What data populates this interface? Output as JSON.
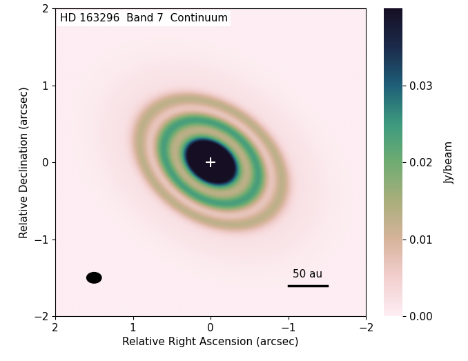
{
  "chart_data": {
    "type": "image",
    "title": "HD 163296  Band 7  Continuum",
    "x_label": "Relative Right Ascension (arcsec)",
    "y_label": "Relative Declination (arcsec)",
    "xlim": [
      2,
      -2
    ],
    "ylim": [
      -2,
      2
    ],
    "xticks": [
      2,
      1,
      0,
      {
        "value": -1,
        "label": "−1"
      },
      {
        "value": -2,
        "label": "−2"
      }
    ],
    "yticks": [
      {
        "value": -2,
        "label": "−2"
      },
      {
        "value": -1,
        "label": "−1"
      },
      0,
      1,
      2
    ],
    "colorbar_label": "Jy/beam",
    "colorbar_range": [
      0,
      0.04
    ],
    "colorbar_ticks": [
      {
        "value": 0,
        "label": "0.00"
      },
      0.01,
      0.02,
      0.03
    ],
    "disk": {
      "inclination": 45,
      "position_angle": 55,
      "components": [
        {
          "radius": 0.0,
          "width": 0.22,
          "peak": 0.12
        },
        {
          "radius": 0.67,
          "width": 0.09,
          "peak": 0.022
        },
        {
          "radius": 1.0,
          "width": 0.09,
          "peak": 0.011
        },
        {
          "radius": 1.2,
          "width": 0.35,
          "peak": 0.002
        }
      ]
    },
    "star_position": [
      0,
      0
    ],
    "beam": {
      "center": [
        1.5,
        -1.5
      ],
      "major": 0.19,
      "minor": 0.14
    },
    "scale_bar": {
      "label": "50 au",
      "start": -1.0,
      "length": 0.5,
      "y": -1.6
    }
  }
}
